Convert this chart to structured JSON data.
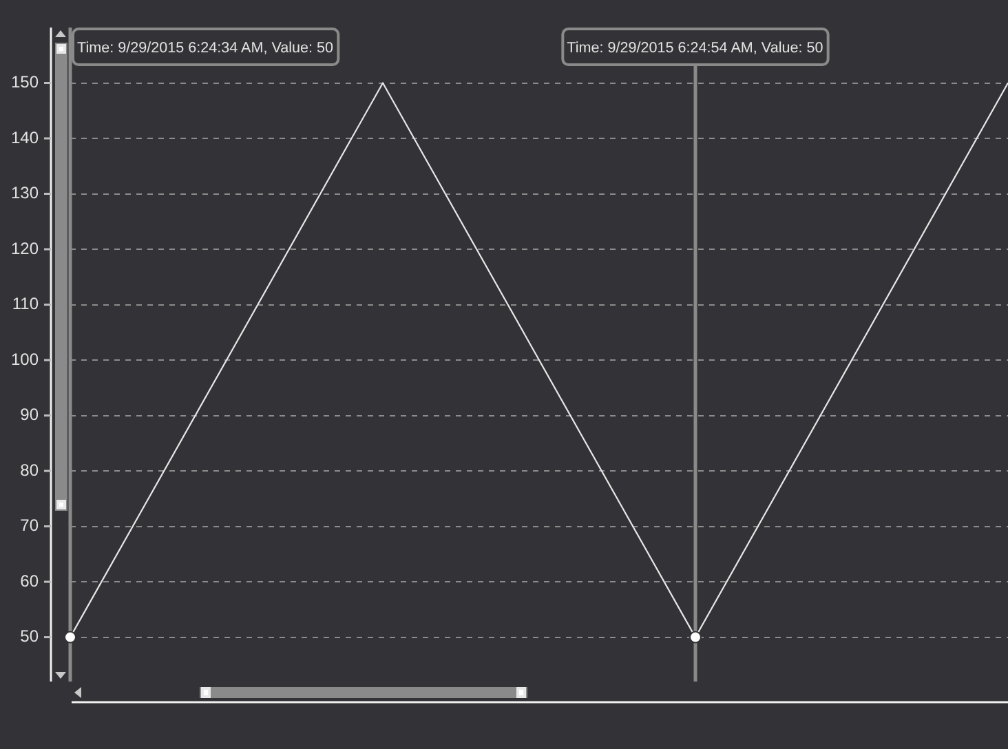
{
  "chart_data": {
    "type": "line",
    "categories": [
      null,
      null,
      null,
      null
    ],
    "series": [
      {
        "color": "#e6e6e6",
        "values": [
          50,
          150,
          50,
          150
        ],
        "marker": "none"
      },
      {
        "type": "scatter",
        "color": "#ffffff",
        "values": [
          50,
          null,
          50,
          null
        ],
        "marker": "circle"
      }
    ],
    "ylim": [
      42,
      160
    ],
    "yticks": [
      50,
      60,
      70,
      80,
      90,
      100,
      110,
      120,
      130,
      140,
      150
    ],
    "grid": "y",
    "legend": false,
    "tick_labels": "y",
    "annotations": [
      "Time: 9/29/2015 6:24:34 AM, Value: 50",
      "Time: 9/29/2015 6:24:54 AM, Value: 50"
    ]
  }
}
